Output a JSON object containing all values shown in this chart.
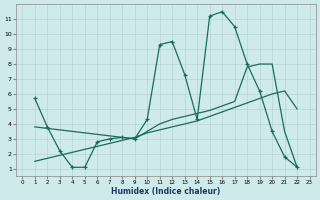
{
  "xlabel": "Humidex (Indice chaleur)",
  "background_color": "#ceeaea",
  "grid_color": "#b8d4d4",
  "line_color": "#1a6b5a",
  "xlim": [
    -0.5,
    23.5
  ],
  "ylim": [
    0.5,
    12
  ],
  "xticks": [
    0,
    1,
    2,
    3,
    4,
    5,
    6,
    7,
    8,
    9,
    10,
    11,
    12,
    13,
    14,
    15,
    16,
    17,
    18,
    19,
    20,
    21,
    22,
    23
  ],
  "yticks": [
    1,
    2,
    3,
    4,
    5,
    6,
    7,
    8,
    9,
    10,
    11
  ],
  "line1_x": [
    1,
    2,
    3,
    4,
    5,
    6,
    7,
    8,
    9,
    10,
    11,
    12,
    13,
    14,
    15,
    16,
    17,
    18,
    19,
    20,
    21,
    22
  ],
  "line1_y": [
    5.7,
    3.8,
    2.2,
    1.1,
    1.1,
    2.8,
    3.0,
    3.1,
    3.0,
    4.3,
    9.3,
    9.5,
    7.3,
    4.3,
    11.2,
    11.5,
    10.5,
    8.0,
    6.2,
    3.5,
    1.8,
    1.1
  ],
  "line2_x": [
    1,
    2,
    3,
    4,
    5,
    6,
    7,
    8,
    9,
    10,
    11,
    12,
    13,
    14,
    15,
    16,
    17,
    18,
    19,
    20,
    21,
    22
  ],
  "line2_y": [
    1.5,
    1.7,
    1.9,
    2.1,
    2.3,
    2.5,
    2.7,
    2.9,
    3.1,
    3.4,
    3.6,
    3.8,
    4.0,
    4.2,
    4.5,
    4.8,
    5.1,
    5.4,
    5.7,
    6.0,
    6.2,
    5.0
  ],
  "line3_x": [
    1,
    2,
    3,
    4,
    5,
    6,
    7,
    8,
    9,
    10,
    11,
    12,
    13,
    14,
    15,
    16,
    17,
    18,
    19,
    20,
    21,
    22
  ],
  "line3_y": [
    3.8,
    3.7,
    3.6,
    3.5,
    3.4,
    3.3,
    3.2,
    3.1,
    3.0,
    3.5,
    4.0,
    4.3,
    4.5,
    4.7,
    4.9,
    5.2,
    5.5,
    7.8,
    8.0,
    8.0,
    3.5,
    1.1
  ]
}
